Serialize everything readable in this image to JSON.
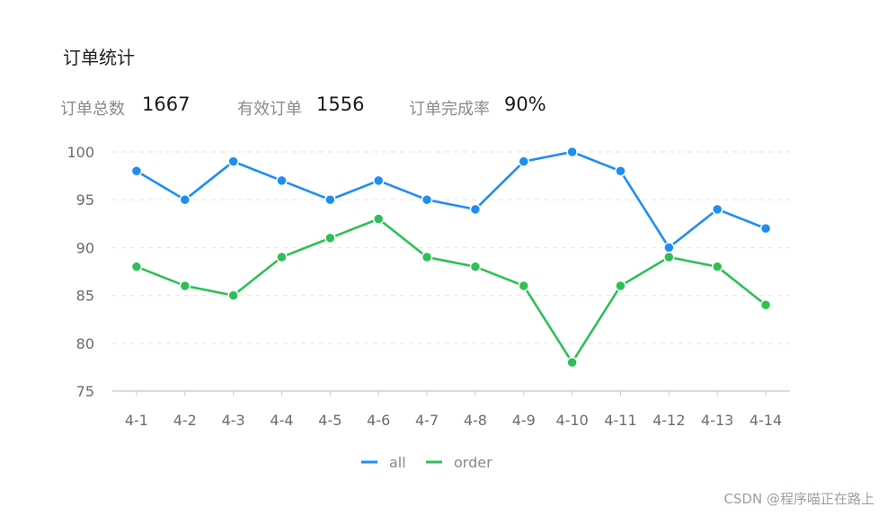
{
  "header": {
    "title": "订单统计"
  },
  "stats": [
    {
      "label": "订单总数",
      "value": "1667"
    },
    {
      "label": "有效订单",
      "value": "1556"
    },
    {
      "label": "订单完成率",
      "value": "90%"
    }
  ],
  "colors": {
    "all": "#1e8ef0",
    "order": "#2fbf57",
    "grid": "#e6e6e6",
    "axis": "#c8c8c8"
  },
  "chart_data": {
    "type": "line",
    "categories": [
      "4-1",
      "4-2",
      "4-3",
      "4-4",
      "4-5",
      "4-6",
      "4-7",
      "4-8",
      "4-9",
      "4-10",
      "4-11",
      "4-12",
      "4-13",
      "4-14"
    ],
    "series": [
      {
        "name": "all",
        "values": [
          98,
          95,
          99,
          97,
          95,
          97,
          95,
          94,
          99,
          100,
          98,
          90,
          94,
          92
        ]
      },
      {
        "name": "order",
        "values": [
          88,
          86,
          85,
          89,
          91,
          93,
          89,
          88,
          86,
          78,
          86,
          89,
          88,
          84
        ]
      }
    ],
    "yticks": [
      75,
      80,
      85,
      90,
      95,
      100
    ],
    "ylim": [
      75,
      100
    ],
    "grid": true,
    "legend": "bottom-center"
  },
  "watermark": "CSDN @程序喵正在路上"
}
